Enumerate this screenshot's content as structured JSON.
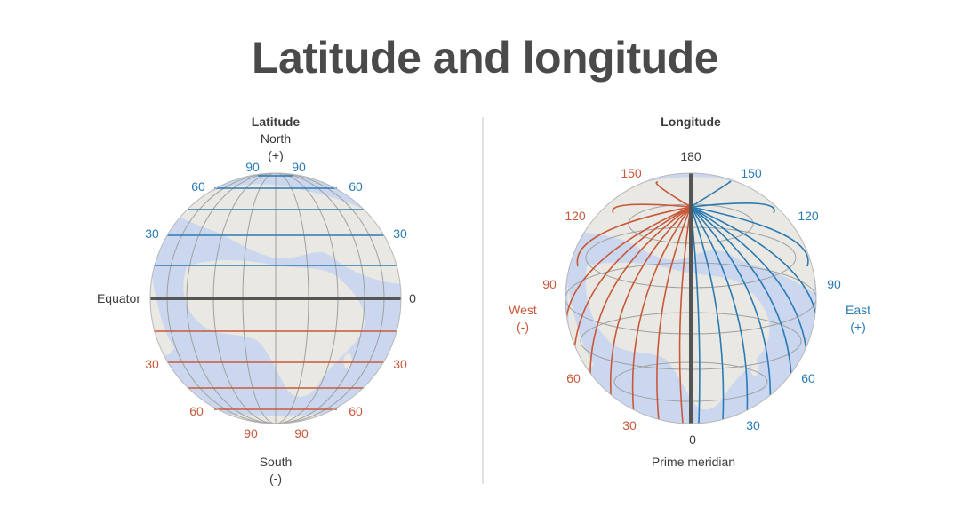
{
  "title": "Latitude and longitude",
  "colors": {
    "north_east": "#2a7ab3",
    "south_west": "#c9583a",
    "equator_meridian": "#555555",
    "land": "#e9e8e2",
    "ocean": "#cad7ef",
    "grid": "#a0a0a0"
  },
  "latitude": {
    "heading": "Latitude",
    "north": "North",
    "north_sign": "(+)",
    "south": "South",
    "south_sign": "(-)",
    "equator_label": "Equator",
    "equator_value": "0",
    "north_labels": {
      "deg90": "90",
      "deg60": "60",
      "deg30": "30"
    },
    "south_labels": {
      "deg30": "30",
      "deg60": "60",
      "deg90": "90"
    }
  },
  "longitude": {
    "heading": "Longitude",
    "top_value": "180",
    "bottom_value": "0",
    "prime_meridian": "Prime meridian",
    "west": "West",
    "west_sign": "(-)",
    "east": "East",
    "east_sign": "(+)",
    "west_labels": {
      "deg150": "150",
      "deg120": "120",
      "deg90": "90",
      "deg60": "60",
      "deg30": "30"
    },
    "east_labels": {
      "deg150": "150",
      "deg120": "120",
      "deg90": "90",
      "deg60": "60",
      "deg30": "30"
    }
  }
}
